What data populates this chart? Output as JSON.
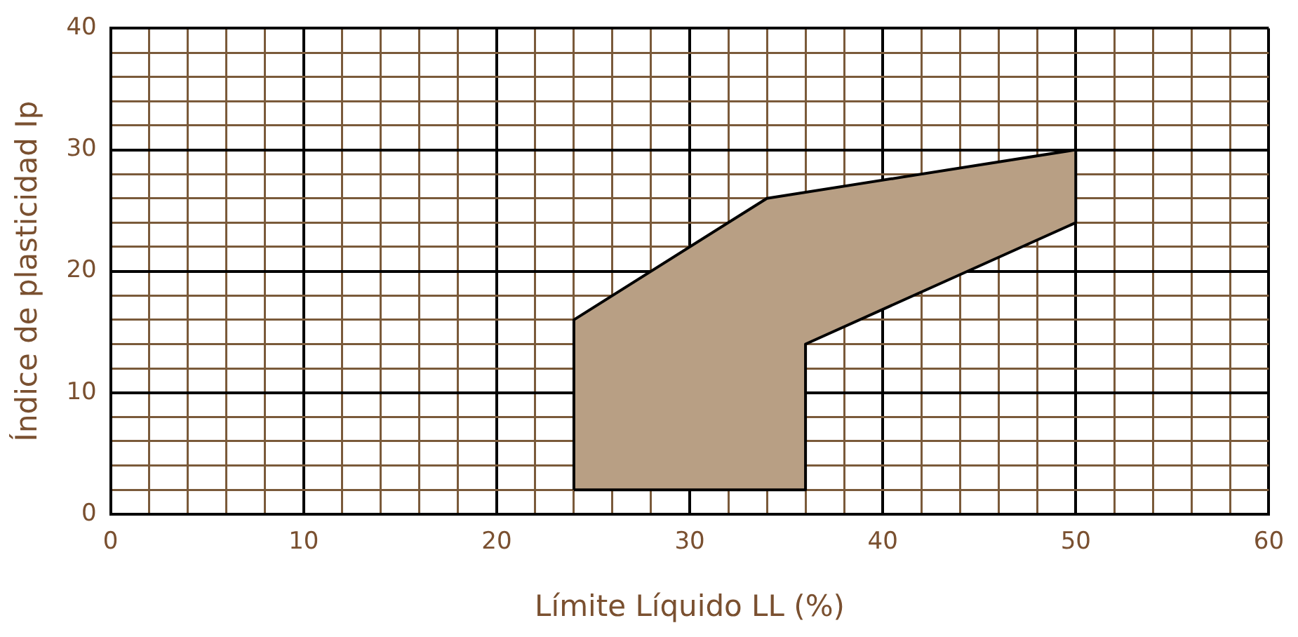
{
  "chart_data": {
    "type": "area",
    "xlabel": "Límite Líquido LL (%)",
    "ylabel": "Índice de plasticidad Ip",
    "x": [
      24,
      24,
      34,
      50,
      50,
      36,
      36,
      24
    ],
    "values": [
      2,
      16,
      26,
      30,
      24,
      14,
      2,
      2
    ],
    "color": "#b89f84",
    "xlim": [
      0,
      60
    ],
    "xticks": [
      0,
      {
        "value": 2,
        "label": null
      },
      {
        "value": 4,
        "label": null
      },
      {
        "value": 6,
        "label": null
      },
      {
        "value": 8,
        "label": null
      },
      10,
      {
        "value": 12,
        "label": null
      },
      {
        "value": 14,
        "label": null
      },
      {
        "value": 16,
        "label": null
      },
      {
        "value": 18,
        "label": null
      },
      20,
      {
        "value": 22,
        "label": null
      },
      {
        "value": 24,
        "label": null
      },
      {
        "value": 26,
        "label": null
      },
      {
        "value": 28,
        "label": null
      },
      30,
      {
        "value": 32,
        "label": null
      },
      {
        "value": 34,
        "label": null
      },
      {
        "value": 36,
        "label": null
      },
      {
        "value": 38,
        "label": null
      },
      40,
      {
        "value": 42,
        "label": null
      },
      {
        "value": 44,
        "label": null
      },
      {
        "value": 46,
        "label": null
      },
      {
        "value": 48,
        "label": null
      },
      50,
      {
        "value": 52,
        "label": null
      },
      {
        "value": 54,
        "label": null
      },
      {
        "value": 56,
        "label": null
      },
      {
        "value": 58,
        "label": null
      },
      60
    ],
    "ylim": [
      0,
      40
    ],
    "yticks": [
      0,
      {
        "value": 2,
        "label": null
      },
      {
        "value": 4,
        "label": null
      },
      {
        "value": 6,
        "label": null
      },
      {
        "value": 8,
        "label": null
      },
      10,
      {
        "value": 12,
        "label": null
      },
      {
        "value": 14,
        "label": null
      },
      {
        "value": 16,
        "label": null
      },
      {
        "value": 18,
        "label": null
      },
      20,
      {
        "value": 22,
        "label": null
      },
      {
        "value": 24,
        "label": null
      },
      {
        "value": 26,
        "label": null
      },
      {
        "value": 28,
        "label": null
      },
      30,
      {
        "value": 32,
        "label": null
      },
      {
        "value": 34,
        "label": null
      },
      {
        "value": 36,
        "label": null
      },
      {
        "value": 38,
        "label": null
      },
      40
    ],
    "grid": true,
    "legend": false,
    "marker": "none"
  }
}
